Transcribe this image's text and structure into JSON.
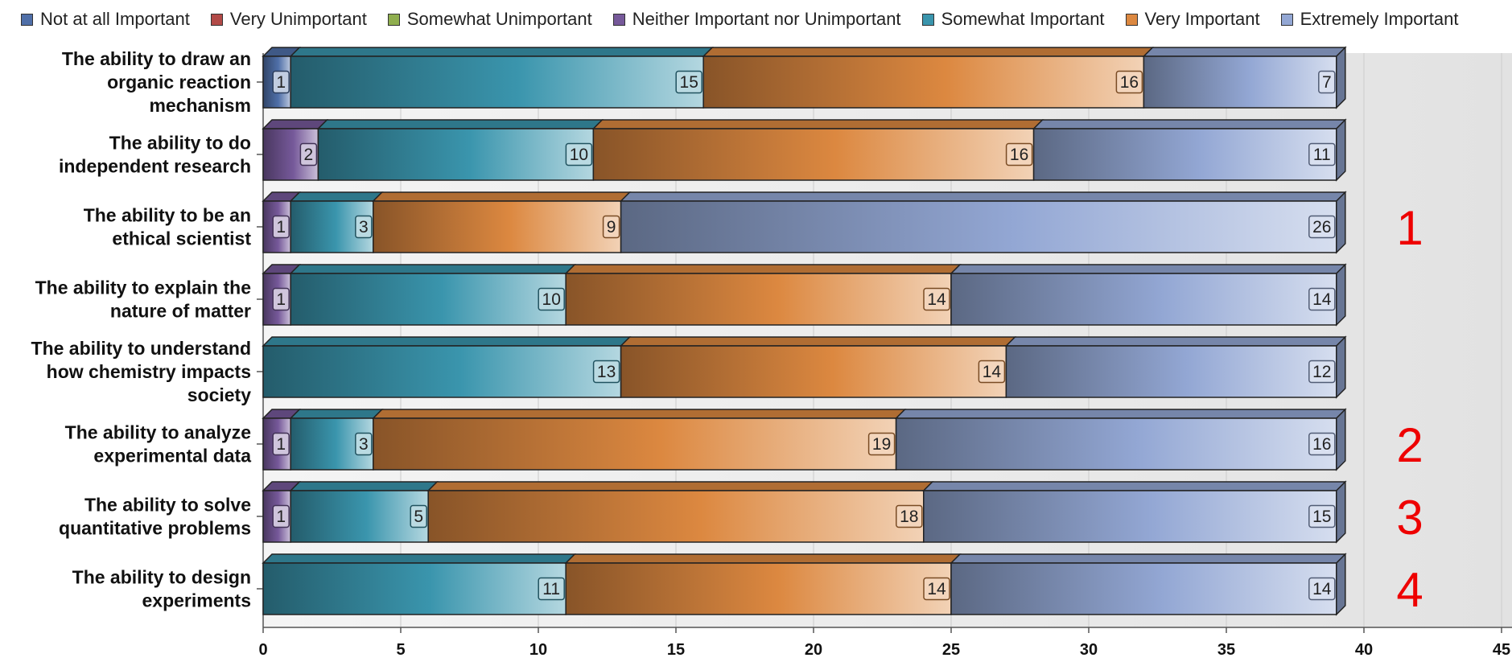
{
  "chart_data": {
    "type": "bar",
    "orientation": "horizontal",
    "stacked": true,
    "categories": [
      [
        "The ability to draw an",
        "organic reaction",
        "mechanism"
      ],
      [
        "The ability to do",
        "independent research"
      ],
      [
        "The ability to be an",
        "ethical scientist"
      ],
      [
        "The ability to explain the",
        "nature of matter"
      ],
      [
        "The ability to understand",
        "how chemistry impacts",
        "society"
      ],
      [
        "The ability to analyze",
        "experimental data"
      ],
      [
        "The ability to solve",
        "quantitative problems"
      ],
      [
        "The ability to design",
        "experiments"
      ]
    ],
    "series": [
      {
        "name": "Not at all Important",
        "color": "#4f6fa8",
        "values": [
          1,
          0,
          0,
          0,
          0,
          0,
          0,
          0
        ]
      },
      {
        "name": "Very Unimportant",
        "color": "#b24a47",
        "values": [
          0,
          0,
          0,
          0,
          0,
          0,
          0,
          0
        ]
      },
      {
        "name": "Somewhat Unimportant",
        "color": "#8fae4e",
        "values": [
          0,
          0,
          0,
          0,
          0,
          0,
          0,
          0
        ]
      },
      {
        "name": "Neither Important nor Unimportant",
        "color": "#76599a",
        "values": [
          0,
          2,
          1,
          1,
          0,
          1,
          1,
          0
        ]
      },
      {
        "name": "Somewhat Important",
        "color": "#3a95ad",
        "values": [
          15,
          10,
          3,
          10,
          13,
          3,
          5,
          11
        ]
      },
      {
        "name": "Very Important",
        "color": "#dc8840",
        "values": [
          16,
          16,
          9,
          14,
          14,
          19,
          18,
          14
        ]
      },
      {
        "name": "Extremely Important",
        "color": "#93a7d4",
        "values": [
          7,
          11,
          26,
          14,
          12,
          16,
          15,
          14
        ]
      }
    ],
    "x_ticks": [
      0,
      5,
      10,
      15,
      20,
      25,
      30,
      35,
      40,
      45
    ],
    "xlim": [
      0,
      45
    ],
    "legend_position": "top",
    "grid": true,
    "annotations": [
      {
        "text": "1",
        "category_index": 2
      },
      {
        "text": "2",
        "category_index": 5
      },
      {
        "text": "3",
        "category_index": 6
      },
      {
        "text": "4",
        "category_index": 7
      }
    ]
  }
}
